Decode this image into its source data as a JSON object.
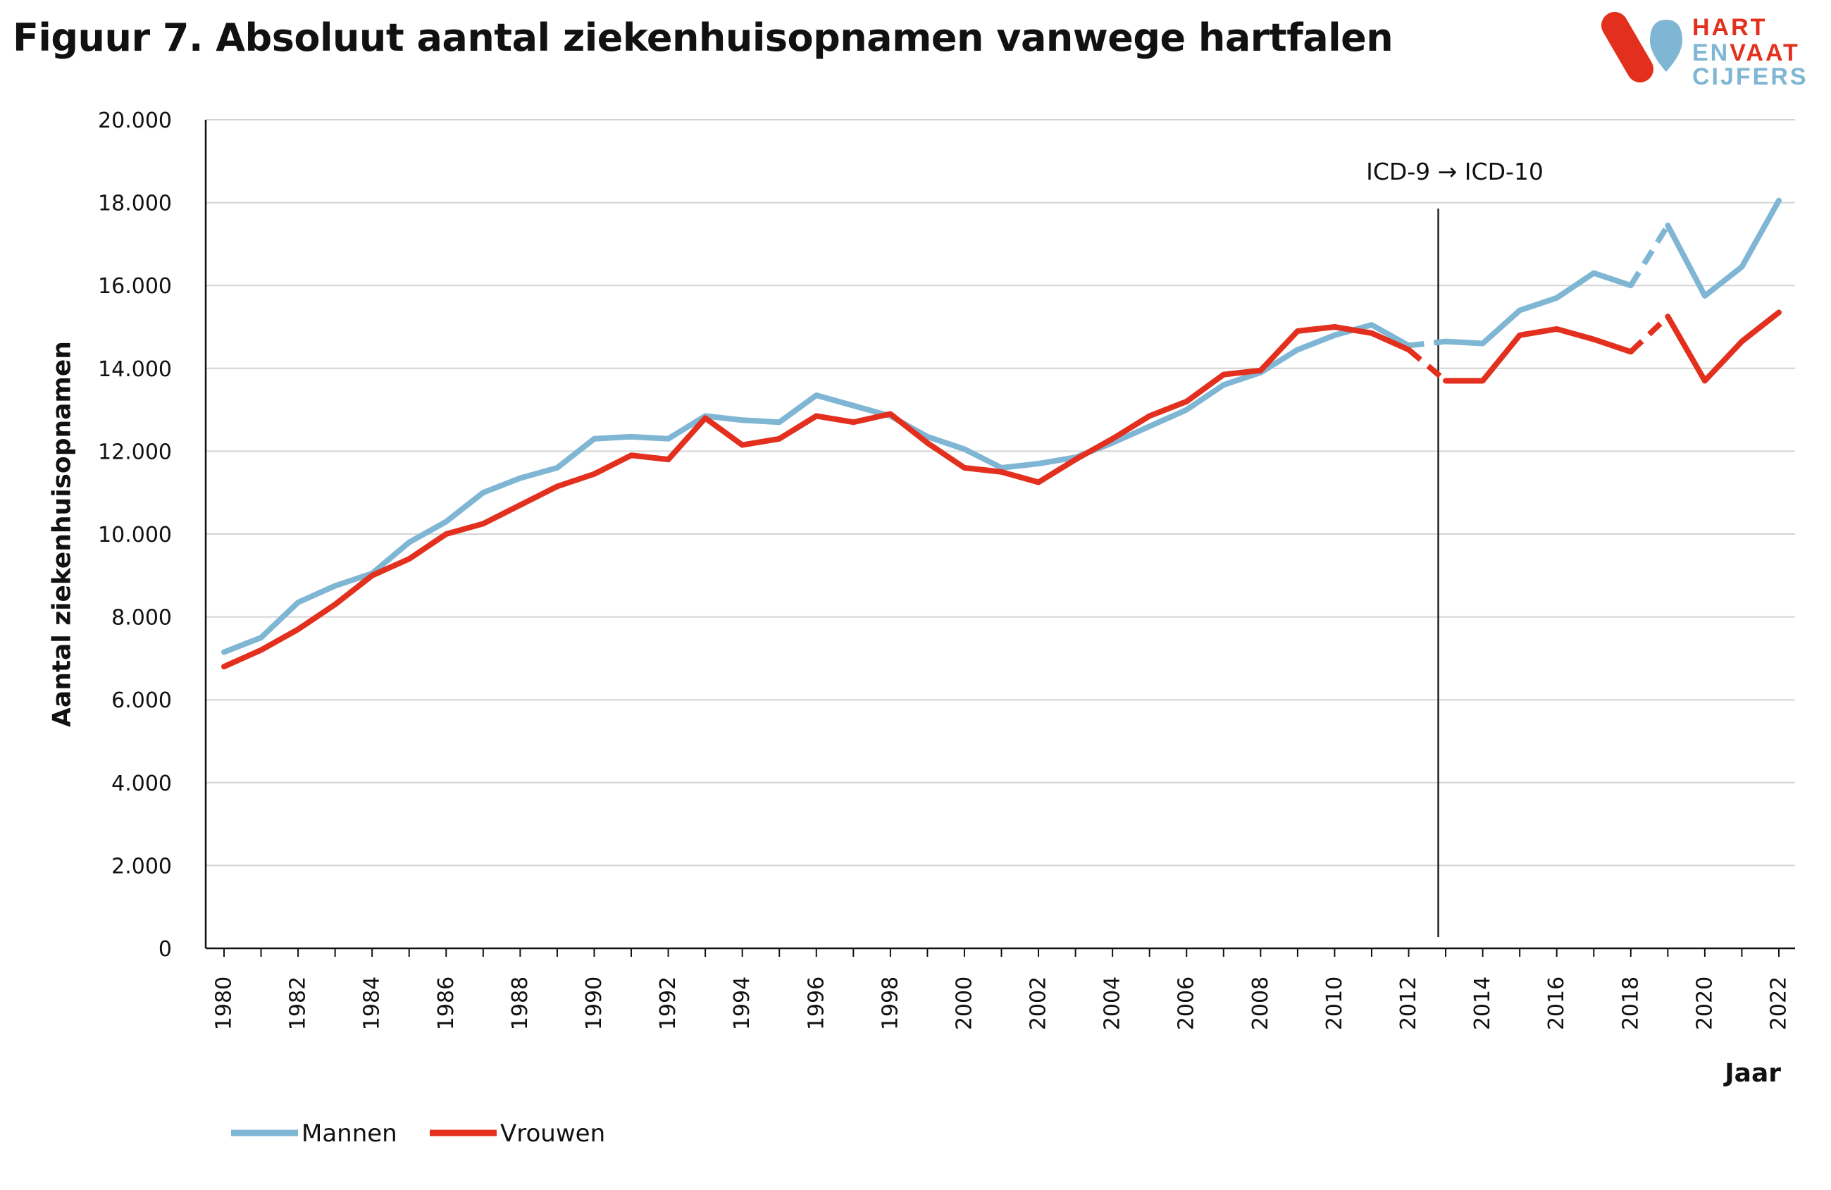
{
  "title": "Figuur 7. Absoluut aantal ziekenhuisopnamen vanwege hartfalen",
  "logo": {
    "line1": "HART",
    "line2a": "EN",
    "line2b": "VAAT",
    "line3": "CIJFERS",
    "colors": {
      "red": "#e3301e",
      "blue": "#7fb6d4"
    }
  },
  "chart_data": {
    "type": "line",
    "title": "Figuur 7. Absoluut aantal ziekenhuisopnamen vanwege hartfalen",
    "xlabel": "Jaar",
    "ylabel": "Aantal ziekenhuisopnamen",
    "xlim": [
      1980,
      2022
    ],
    "ylim": [
      0,
      20000
    ],
    "yticks": [
      0,
      2000,
      4000,
      6000,
      8000,
      10000,
      12000,
      14000,
      16000,
      18000,
      20000
    ],
    "ytick_labels": [
      "0",
      "2.000",
      "4.000",
      "6.000",
      "8.000",
      "10.000",
      "12.000",
      "14.000",
      "16.000",
      "18.000",
      "20.000"
    ],
    "xticks": [
      1980,
      1982,
      1984,
      1986,
      1988,
      1990,
      1992,
      1994,
      1996,
      1998,
      2000,
      2002,
      2004,
      2006,
      2008,
      2010,
      2012,
      2014,
      2016,
      2018,
      2020,
      2022
    ],
    "xtick_labels": [
      "1980",
      "1982",
      "1984",
      "1986",
      "1988",
      "1990",
      "1992",
      "1994",
      "1996",
      "1998",
      "2000",
      "2002",
      "2004",
      "2006",
      "2008",
      "2010",
      "2012",
      "2014",
      "2016",
      "2018",
      "2020",
      "2022"
    ],
    "grid": "horizontal",
    "legend_position": "bottom-left",
    "annotation": {
      "text": "ICD-9 → ICD-10",
      "x": 2012.8
    },
    "dashed_segments": [
      [
        2012,
        2013
      ],
      [
        2018,
        2019
      ]
    ],
    "x": [
      1980,
      1981,
      1982,
      1983,
      1984,
      1985,
      1986,
      1987,
      1988,
      1989,
      1990,
      1991,
      1992,
      1993,
      1994,
      1995,
      1996,
      1997,
      1998,
      1999,
      2000,
      2001,
      2002,
      2003,
      2004,
      2005,
      2006,
      2007,
      2008,
      2009,
      2010,
      2011,
      2012,
      2013,
      2014,
      2015,
      2016,
      2017,
      2018,
      2019,
      2020,
      2021,
      2022
    ],
    "series": [
      {
        "name": "Mannen",
        "color": "#7fb6d4",
        "values": [
          7150,
          7500,
          8350,
          8750,
          9050,
          9800,
          10300,
          11000,
          11350,
          11600,
          12300,
          12350,
          12300,
          12850,
          12750,
          12700,
          13350,
          13100,
          12850,
          12350,
          12050,
          11600,
          11700,
          11850,
          12200,
          12600,
          13000,
          13600,
          13900,
          14450,
          14800,
          15050,
          14550,
          14650,
          14600,
          15400,
          15700,
          16300,
          16000,
          17450,
          15750,
          16450,
          18050
        ]
      },
      {
        "name": "Vrouwen",
        "color": "#e3301e",
        "values": [
          6800,
          7200,
          7700,
          8300,
          9000,
          9400,
          10000,
          10250,
          10700,
          11150,
          11450,
          11900,
          11800,
          12800,
          12150,
          12300,
          12850,
          12700,
          12900,
          12200,
          11600,
          11500,
          11250,
          11800,
          12300,
          12850,
          13200,
          13850,
          13950,
          14900,
          15000,
          14850,
          14450,
          13700,
          13700,
          14800,
          14950,
          14700,
          14400,
          15250,
          13700,
          14650,
          15350
        ]
      }
    ]
  }
}
